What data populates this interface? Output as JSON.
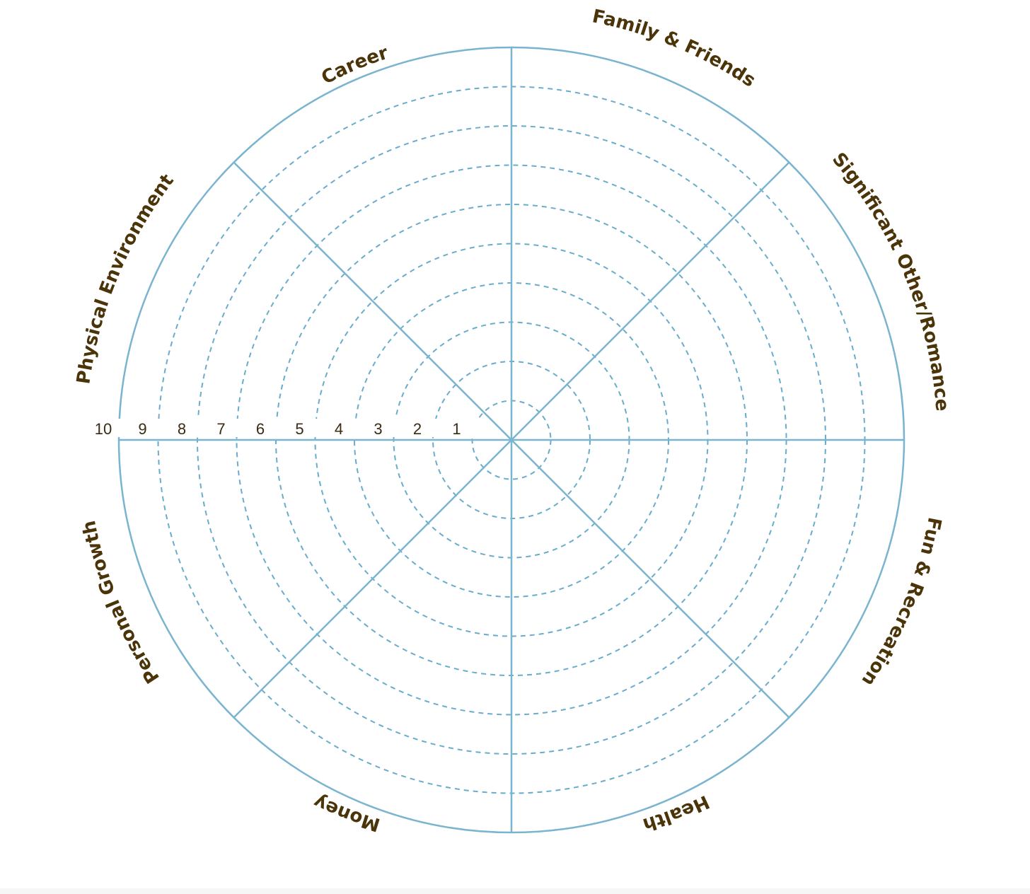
{
  "wheel": {
    "areas": [
      "Career",
      "Family & Friends",
      "Significant Other/Romance",
      "Fun & Recreation",
      "Health",
      "Money",
      "Personal Growth",
      "Physical Environment"
    ],
    "scale": [
      "10",
      "9",
      "8",
      "7",
      "6",
      "5",
      "4",
      "3",
      "2",
      "1"
    ],
    "line_color": "#7ab4cf",
    "label_color": "#4a3408"
  }
}
